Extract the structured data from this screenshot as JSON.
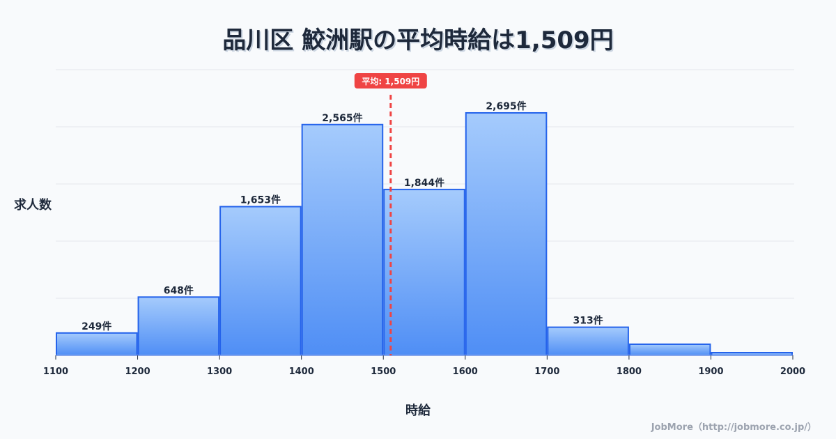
{
  "chart_data": {
    "type": "bar",
    "title": "品川区 鮫洲駅の平均時給は1,509円",
    "xlabel": "時給",
    "ylabel": "求人数",
    "bins": [
      1100,
      1200,
      1300,
      1400,
      1500,
      1600,
      1700,
      1800,
      1900,
      2000
    ],
    "values": [
      249,
      648,
      1653,
      2565,
      1844,
      2695,
      313,
      124,
      31
    ],
    "labels": [
      "249件",
      "648件",
      "1,653件",
      "2,565件",
      "1,844件",
      "2,695件",
      "313件",
      "",
      ""
    ],
    "ylim": [
      0,
      3175
    ],
    "xlim": [
      1100,
      2000
    ],
    "grid": true,
    "mean": {
      "value": 1509,
      "label": "平均: 1,509円",
      "color": "#ef4444"
    },
    "bar_color": "#2563eb"
  },
  "credit": "JobMore（http://jobmore.co.jp/）"
}
